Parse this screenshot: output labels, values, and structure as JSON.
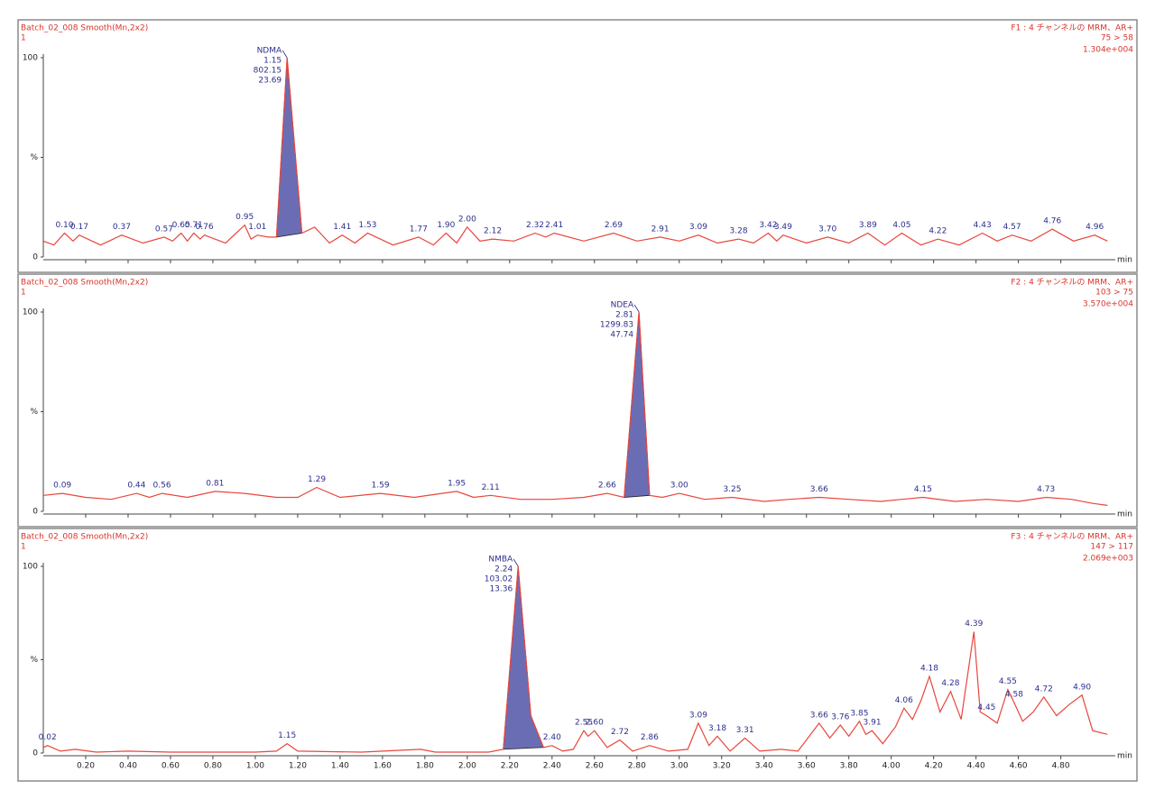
{
  "chart_data": [
    {
      "type": "line",
      "header_left": [
        "Batch_02_008 Smooth(Mn,2x2)",
        "1"
      ],
      "header_right": [
        "F1 : 4 チャンネルの MRM、AR+",
        "75 > 58",
        "1.304e+004"
      ],
      "xlabel": "min",
      "annotation": [
        "NDMA",
        "1.15",
        "802.15",
        "23.69"
      ],
      "color": "#e8463c",
      "fill_color": "#6b6db4",
      "xlim": [
        0,
        5.04
      ],
      "ylim": [
        0,
        100
      ],
      "yticks": [
        0,
        {
          "value": 50,
          "label": "%"
        },
        100
      ],
      "fill_range": [
        1.1,
        1.22
      ],
      "x": [
        0,
        0.05,
        0.1,
        0.14,
        0.17,
        0.27,
        0.37,
        0.47,
        0.57,
        0.61,
        0.65,
        0.68,
        0.71,
        0.74,
        0.76,
        0.86,
        0.95,
        0.98,
        1.01,
        1.06,
        1.1,
        1.15,
        1.22,
        1.28,
        1.35,
        1.41,
        1.47,
        1.53,
        1.65,
        1.77,
        1.84,
        1.9,
        1.95,
        2.0,
        2.06,
        2.12,
        2.22,
        2.32,
        2.37,
        2.41,
        2.55,
        2.69,
        2.8,
        2.91,
        3.0,
        3.09,
        3.18,
        3.28,
        3.35,
        3.42,
        3.46,
        3.49,
        3.6,
        3.7,
        3.8,
        3.89,
        3.97,
        4.05,
        4.14,
        4.22,
        4.32,
        4.43,
        4.5,
        4.57,
        4.66,
        4.76,
        4.86,
        4.96,
        5.02
      ],
      "values": [
        8,
        6,
        12,
        8,
        11,
        6,
        11,
        7,
        10,
        8,
        12,
        8,
        12,
        9,
        11,
        7,
        16,
        9,
        11,
        10,
        10,
        100,
        12,
        15,
        7,
        11,
        7,
        12,
        6,
        10,
        6,
        12,
        7,
        15,
        8,
        9,
        8,
        12,
        10,
        12,
        8,
        12,
        8,
        10,
        8,
        11,
        7,
        9,
        7,
        12,
        8,
        11,
        7,
        10,
        7,
        12,
        6,
        12,
        6,
        9,
        6,
        12,
        8,
        11,
        8,
        14,
        8,
        11,
        8
      ],
      "peak_labels": [
        {
          "value": 0.1,
          "label": "0.10"
        },
        {
          "value": 0.17,
          "label": "0.17"
        },
        {
          "value": 0.37,
          "label": "0.37"
        },
        {
          "value": 0.57,
          "label": "0.57"
        },
        {
          "value": 0.65,
          "label": "0.65"
        },
        {
          "value": 0.71,
          "label": "0.71"
        },
        {
          "value": 0.76,
          "label": "0.76"
        },
        {
          "value": 0.95,
          "label": "0.95"
        },
        {
          "value": 1.01,
          "label": "1.01"
        },
        {
          "value": 1.41,
          "label": "1.41"
        },
        {
          "value": 1.53,
          "label": "1.53"
        },
        {
          "value": 1.77,
          "label": "1.77"
        },
        {
          "value": 1.9,
          "label": "1.90"
        },
        {
          "value": 2,
          "label": "2.00"
        },
        {
          "value": 2.12,
          "label": "2.12"
        },
        {
          "value": 2.32,
          "label": "2.32"
        },
        {
          "value": 2.41,
          "label": "2.41"
        },
        {
          "value": 2.69,
          "label": "2.69"
        },
        {
          "value": 2.91,
          "label": "2.91"
        },
        {
          "value": 3.09,
          "label": "3.09"
        },
        {
          "value": 3.28,
          "label": "3.28"
        },
        {
          "value": 3.42,
          "label": "3.42"
        },
        {
          "value": 3.49,
          "label": "3.49"
        },
        {
          "value": 3.7,
          "label": "3.70"
        },
        {
          "value": 3.89,
          "label": "3.89"
        },
        {
          "value": 4.05,
          "label": "4.05"
        },
        {
          "value": 4.22,
          "label": "4.22"
        },
        {
          "value": 4.43,
          "label": "4.43"
        },
        {
          "value": 4.57,
          "label": "4.57"
        },
        {
          "value": 4.76,
          "label": "4.76"
        },
        {
          "value": 4.96,
          "label": "4.96"
        }
      ]
    },
    {
      "type": "line",
      "header_left": [
        "Batch_02_008 Smooth(Mn,2x2)",
        "1"
      ],
      "header_right": [
        "F2 : 4 チャンネルの MRM、AR+",
        "103 > 75",
        "3.570e+004"
      ],
      "xlabel": "min",
      "annotation": [
        "NDEA",
        "2.81",
        "1299.83",
        "47.74"
      ],
      "color": "#e8463c",
      "fill_color": "#6b6db4",
      "xlim": [
        0,
        5.04
      ],
      "ylim": [
        0,
        100
      ],
      "yticks": [
        0,
        {
          "value": 50,
          "label": "%"
        },
        100
      ],
      "fill_range": [
        2.74,
        2.86
      ],
      "x": [
        0,
        0.09,
        0.2,
        0.32,
        0.44,
        0.5,
        0.56,
        0.68,
        0.81,
        0.95,
        1.1,
        1.2,
        1.29,
        1.4,
        1.59,
        1.75,
        1.88,
        1.95,
        2.03,
        2.11,
        2.25,
        2.4,
        2.55,
        2.66,
        2.74,
        2.81,
        2.86,
        2.92,
        3.0,
        3.12,
        3.25,
        3.4,
        3.52,
        3.66,
        3.8,
        3.95,
        4.05,
        4.15,
        4.3,
        4.45,
        4.6,
        4.73,
        4.85,
        4.95,
        5.02
      ],
      "values": [
        8,
        9,
        7,
        6,
        9,
        7,
        9,
        7,
        10,
        9,
        7,
        7,
        12,
        7,
        9,
        7,
        9,
        10,
        7,
        8,
        6,
        6,
        7,
        9,
        7,
        100,
        8,
        7,
        9,
        6,
        7,
        5,
        6,
        7,
        6,
        5,
        6,
        7,
        5,
        6,
        5,
        7,
        6,
        4,
        3
      ],
      "peak_labels": [
        {
          "value": 0.09,
          "label": "0.09"
        },
        {
          "value": 0.44,
          "label": "0.44"
        },
        {
          "value": 0.56,
          "label": "0.56"
        },
        {
          "value": 0.81,
          "label": "0.81"
        },
        {
          "value": 1.29,
          "label": "1.29"
        },
        {
          "value": 1.59,
          "label": "1.59"
        },
        {
          "value": 1.95,
          "label": "1.95"
        },
        {
          "value": 2.11,
          "label": "2.11"
        },
        {
          "value": 2.66,
          "label": "2.66"
        },
        {
          "value": 3,
          "label": "3.00"
        },
        {
          "value": 3.25,
          "label": "3.25"
        },
        {
          "value": 3.66,
          "label": "3.66"
        },
        {
          "value": 4.15,
          "label": "4.15"
        },
        {
          "value": 4.73,
          "label": "4.73"
        }
      ]
    },
    {
      "type": "line",
      "header_left": [
        "Batch_02_008 Smooth(Mn,2x2)",
        "1"
      ],
      "header_right": [
        "F3 : 4 チャンネルの MRM、AR+",
        "147 > 117",
        "2.069e+003"
      ],
      "xlabel": "min",
      "annotation": [
        "NMBA",
        "2.24",
        "103.02",
        "13.36"
      ],
      "color": "#e8463c",
      "fill_color": "#6b6db4",
      "xlim": [
        0,
        5.04
      ],
      "ylim": [
        0,
        100
      ],
      "yticks": [
        0,
        {
          "value": 50,
          "label": "%"
        },
        100
      ],
      "xticks": [
        {
          "value": 0.2,
          "label": "0.20"
        },
        {
          "value": 0.4,
          "label": "0.40"
        },
        {
          "value": 0.6,
          "label": "0.60"
        },
        {
          "value": 0.8,
          "label": "0.80"
        },
        {
          "value": 1,
          "label": "1.00"
        },
        {
          "value": 1.2,
          "label": "1.20"
        },
        {
          "value": 1.4,
          "label": "1.40"
        },
        {
          "value": 1.6,
          "label": "1.60"
        },
        {
          "value": 1.8,
          "label": "1.80"
        },
        {
          "value": 2,
          "label": "2.00"
        },
        {
          "value": 2.2,
          "label": "2.20"
        },
        {
          "value": 2.4,
          "label": "2.40"
        },
        {
          "value": 2.6,
          "label": "2.60"
        },
        {
          "value": 2.8,
          "label": "2.80"
        },
        {
          "value": 3,
          "label": "3.00"
        },
        {
          "value": 3.2,
          "label": "3.20"
        },
        {
          "value": 3.4,
          "label": "3.40"
        },
        {
          "value": 3.6,
          "label": "3.60"
        },
        {
          "value": 3.8,
          "label": "3.80"
        },
        {
          "value": 4,
          "label": "4.00"
        },
        {
          "value": 4.2,
          "label": "4.20"
        },
        {
          "value": 4.4,
          "label": "4.40"
        },
        {
          "value": 4.6,
          "label": "4.60"
        },
        {
          "value": 4.8,
          "label": "4.80"
        }
      ],
      "fill_range": [
        2.17,
        2.36
      ],
      "x": [
        0,
        0.02,
        0.08,
        0.15,
        0.25,
        0.4,
        0.6,
        1.0,
        1.1,
        1.15,
        1.2,
        1.5,
        1.78,
        1.85,
        2.1,
        2.17,
        2.24,
        2.3,
        2.36,
        2.4,
        2.45,
        2.5,
        2.55,
        2.57,
        2.6,
        2.66,
        2.72,
        2.78,
        2.86,
        2.95,
        3.04,
        3.09,
        3.14,
        3.18,
        3.24,
        3.31,
        3.38,
        3.48,
        3.56,
        3.66,
        3.71,
        3.76,
        3.8,
        3.85,
        3.88,
        3.91,
        3.96,
        4.02,
        4.06,
        4.1,
        4.14,
        4.18,
        4.23,
        4.28,
        4.33,
        4.39,
        4.42,
        4.45,
        4.5,
        4.55,
        4.58,
        4.62,
        4.67,
        4.72,
        4.78,
        4.84,
        4.9,
        4.95,
        5.02
      ],
      "values": [
        3,
        4,
        1,
        2,
        0.5,
        1,
        0.5,
        0.5,
        1,
        5,
        1,
        0.5,
        2,
        0.5,
        0.5,
        2,
        100,
        20,
        3,
        4,
        1,
        2,
        12,
        9,
        12,
        3,
        7,
        1,
        4,
        1,
        2,
        16,
        4,
        9,
        1,
        8,
        1,
        2,
        1,
        16,
        8,
        15,
        9,
        17,
        10,
        12,
        5,
        14,
        24,
        18,
        28,
        41,
        22,
        33,
        18,
        65,
        22,
        20,
        16,
        34,
        27,
        17,
        22,
        30,
        20,
        26,
        31,
        12,
        10
      ],
      "peak_labels": [
        {
          "value": 0.02,
          "label": "0.02"
        },
        {
          "value": 1.15,
          "label": "1.15"
        },
        {
          "value": 2.4,
          "label": "2.40"
        },
        {
          "value": 2.55,
          "label": "2.55"
        },
        {
          "value": 2.6,
          "label": "2.60"
        },
        {
          "value": 2.72,
          "label": "2.72"
        },
        {
          "value": 2.86,
          "label": "2.86"
        },
        {
          "value": 3.09,
          "label": "3.09"
        },
        {
          "value": 3.18,
          "label": "3.18"
        },
        {
          "value": 3.31,
          "label": "3.31"
        },
        {
          "value": 3.66,
          "label": "3.66"
        },
        {
          "value": 3.76,
          "label": "3.76"
        },
        {
          "value": 3.85,
          "label": "3.85"
        },
        {
          "value": 3.91,
          "label": "3.91"
        },
        {
          "value": 4.06,
          "label": "4.06"
        },
        {
          "value": 4.18,
          "label": "4.18"
        },
        {
          "value": 4.28,
          "label": "4.28"
        },
        {
          "value": 4.39,
          "label": "4.39"
        },
        {
          "value": 4.45,
          "label": "4.45"
        },
        {
          "value": 4.55,
          "label": "4.55"
        },
        {
          "value": 4.58,
          "label": "4.58"
        },
        {
          "value": 4.72,
          "label": "4.72"
        },
        {
          "value": 4.9,
          "label": "4.90"
        }
      ]
    }
  ]
}
